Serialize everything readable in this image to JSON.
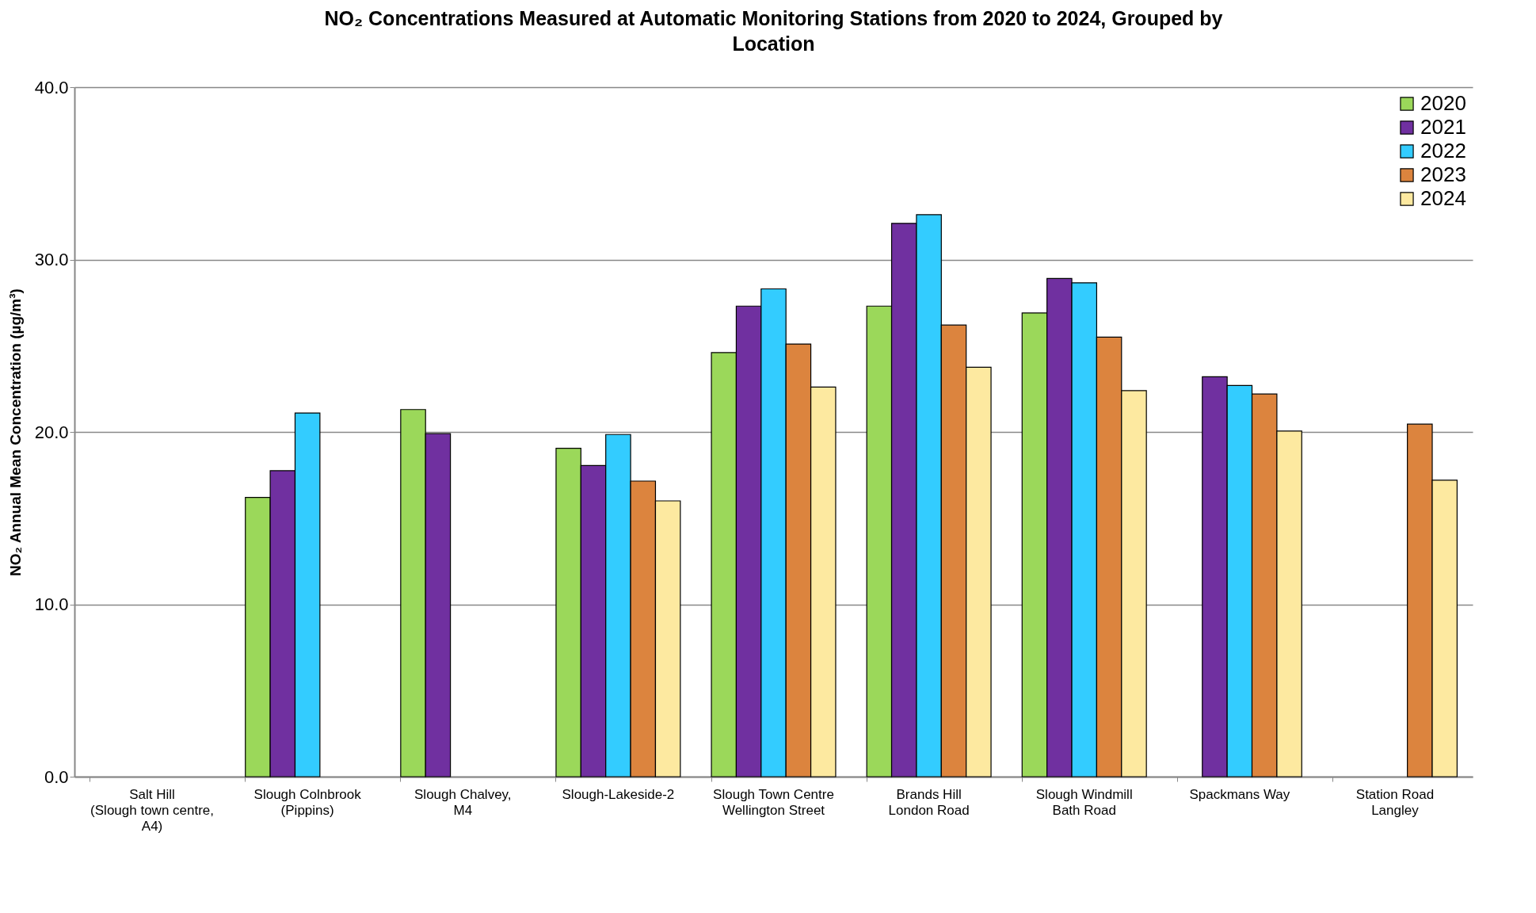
{
  "chart_data": {
    "type": "bar",
    "title": [
      "NO₂ Concentrations Measured at Automatic Monitoring Stations from 2020 to 2024, Grouped by",
      "Location"
    ],
    "ylabel": "NO₂  Annual Mean Concentration (µg/m³)",
    "categories": [
      "Salt Hill\n(Slough town centre,\nA4)",
      "Slough Colnbrook\n(Pippins)",
      "Slough Chalvey,\nM4",
      "Slough-Lakeside-2",
      "Slough Town Centre\nWellington Street",
      "Brands Hill\nLondon Road",
      "Slough Windmill\nBath Road",
      "Spackmans Way",
      "Station Road\nLangley"
    ],
    "series": [
      {
        "name": "2020",
        "color": "#9bd85a",
        "values": [
          null,
          16.2,
          21.3,
          19.05,
          24.6,
          27.3,
          26.9,
          null,
          null
        ]
      },
      {
        "name": "2021",
        "color": "#7030a0",
        "values": [
          null,
          17.75,
          19.9,
          18.05,
          27.3,
          32.1,
          28.9,
          23.2,
          null
        ]
      },
      {
        "name": "2022",
        "color": "#33ccff",
        "values": [
          null,
          21.1,
          null,
          19.85,
          28.3,
          32.6,
          28.65,
          22.7,
          null
        ]
      },
      {
        "name": "2023",
        "color": "#dc843e",
        "values": [
          null,
          null,
          null,
          17.15,
          25.1,
          26.2,
          25.5,
          22.2,
          20.45
        ]
      },
      {
        "name": "2024",
        "color": "#fde9a0",
        "values": [
          null,
          null,
          null,
          16.0,
          22.6,
          23.75,
          22.4,
          20.05,
          17.2
        ]
      }
    ],
    "ylim": [
      0,
      40
    ],
    "yticks": [
      {
        "value": 0,
        "label": "0.0"
      },
      {
        "value": 10,
        "label": "10.0"
      },
      {
        "value": 20,
        "label": "20.0"
      },
      {
        "value": 30,
        "label": "30.0"
      },
      {
        "value": 40,
        "label": "40.0"
      }
    ],
    "grid": "y",
    "legend": "top right"
  }
}
